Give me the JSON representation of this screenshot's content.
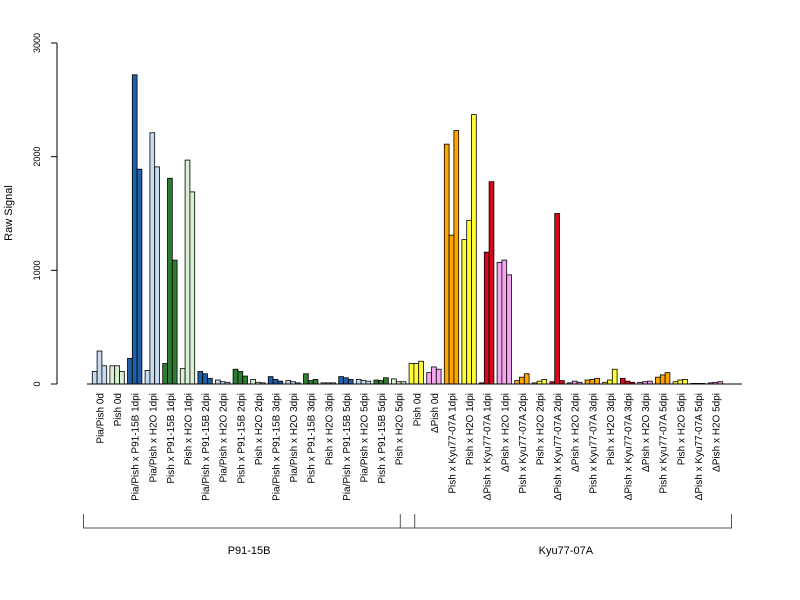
{
  "chart_data": {
    "type": "bar",
    "title": "",
    "xlabel": "",
    "ylabel": "Raw Signal",
    "ylim": [
      0,
      3000
    ],
    "yticks": [
      0,
      1000,
      2000,
      3000
    ],
    "grid": false,
    "legend": "none",
    "categories": [
      "Pia/Pish 0d",
      "Pish 0d",
      "Pia/Pish x P91-15B 1dpi",
      "Pia/Pish x H2O 1dpi",
      "Pish x P91-15B 1dpi",
      "Pish x H2O 1dpi",
      "Pia/Pish x P91-15B 2dpi",
      "Pia/Pish x H2O 2dpi",
      "Pish x P91-15B 2dpi",
      "Pish x H2O 2dpi",
      "Pia/Pish x P91-15B 3dpi",
      "Pia/Pish x H2O 3dpi",
      "Pish x P91-15B 3dpi",
      "Pish x H2O 3dpi",
      "Pia/Pish x P91-15B 5dpi",
      "Pia/Pish x H2O 5dpi",
      "Pish x P91-15B 5dpi",
      "Pish x H2O 5dpi",
      "Pish 0d",
      "ΔPish 0d",
      "Pish x Kyu77-07A 1dpi",
      "Pish x H2O 1dpi",
      "ΔPish x Kyu77-07A 1dpi",
      "ΔPish x H2O 1dpi",
      "Pish x Kyu77-07A 2dpi",
      "Pish x H2O 2dpi",
      "ΔPish x Kyu77-07A 2dpi",
      "ΔPish x H2O 2dpi",
      "Pish x Kyu77-07A 3dpi",
      "Pish x H2O 3dpi",
      "ΔPish x Kyu77-07A 3dpi",
      "ΔPish x H2O 3dpi",
      "Pish x Kyu77-07A 5dpi",
      "Pish x H2O 5dpi",
      "ΔPish x Kyu77-07A 5dpi",
      "ΔPish x H2O 5dpi"
    ],
    "colors": [
      "#c6dbef",
      "#d9f0d3",
      "#2060a8",
      "#c6dbef",
      "#2e7d32",
      "#d9f0d3",
      "#2060a8",
      "#c6dbef",
      "#2e7d32",
      "#d9f0d3",
      "#2060a8",
      "#c6dbef",
      "#2e7d32",
      "#d9f0d3",
      "#2060a8",
      "#c6dbef",
      "#2e7d32",
      "#d9f0d3",
      "#ffff33",
      "#f4a6f0",
      "#ffa500",
      "#ffff33",
      "#d7081b",
      "#f4a6f0",
      "#ffa500",
      "#ffff33",
      "#d7081b",
      "#f4a6f0",
      "#ffa500",
      "#ffff33",
      "#d7081b",
      "#f4a6f0",
      "#ffa500",
      "#ffff33",
      "#d7081b",
      "#f4a6f0"
    ],
    "values": [
      [
        110,
        290,
        160
      ],
      [
        160,
        160,
        110
      ],
      [
        225,
        2720,
        1890
      ],
      [
        120,
        2210,
        1910
      ],
      [
        180,
        1810,
        1090
      ],
      [
        135,
        1970,
        1690
      ],
      [
        110,
        90,
        50
      ],
      [
        35,
        20,
        15
      ],
      [
        130,
        110,
        70
      ],
      [
        40,
        15,
        10
      ],
      [
        65,
        40,
        25
      ],
      [
        30,
        20,
        10
      ],
      [
        90,
        30,
        40
      ],
      [
        10,
        10,
        10
      ],
      [
        65,
        55,
        40
      ],
      [
        40,
        30,
        25
      ],
      [
        35,
        30,
        55
      ],
      [
        45,
        20,
        20
      ],
      [
        180,
        180,
        200
      ],
      [
        100,
        150,
        130
      ],
      [
        2110,
        1310,
        2230
      ],
      [
        1270,
        1440,
        2370
      ],
      [
        10,
        1160,
        1780
      ],
      [
        1070,
        1090,
        960
      ],
      [
        30,
        60,
        90
      ],
      [
        10,
        25,
        40
      ],
      [
        20,
        1500,
        30
      ],
      [
        10,
        25,
        15
      ],
      [
        35,
        40,
        50
      ],
      [
        15,
        35,
        130
      ],
      [
        50,
        25,
        15
      ],
      [
        15,
        20,
        25
      ],
      [
        60,
        80,
        100
      ],
      [
        20,
        35,
        40
      ],
      [
        5,
        5,
        5
      ],
      [
        10,
        15,
        20
      ]
    ],
    "groups": [
      {
        "label": "P91-15B",
        "start": 0,
        "end": 17
      },
      {
        "label": "Kyu77-07A",
        "start": 18,
        "end": 35
      }
    ]
  }
}
